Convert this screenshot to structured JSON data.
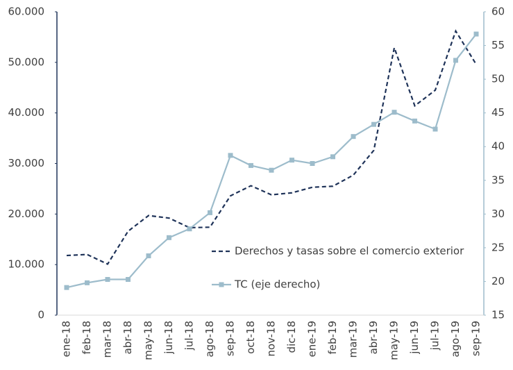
{
  "chart_data": {
    "type": "line",
    "categories": [
      "ene-18",
      "feb-18",
      "mar-18",
      "abr-18",
      "may-18",
      "jun-18",
      "jul-18",
      "ago-18",
      "sep-18",
      "oct-18",
      "nov-18",
      "dic-18",
      "ene-19",
      "feb-19",
      "mar-19",
      "abr-19",
      "may-19",
      "jun-19",
      "jul-19",
      "ago-19",
      "sep-19"
    ],
    "series": [
      {
        "name": "Derechos y tasas sobre el comercio exterior",
        "color": "#1f3359",
        "dash": true,
        "values": [
          11800,
          12000,
          10100,
          16600,
          19700,
          19200,
          17300,
          17400,
          23600,
          25600,
          23800,
          24200,
          25300,
          25500,
          27700,
          32600,
          52900,
          41400,
          44500,
          56200,
          49600
        ]
      },
      {
        "name": "TC (eje derecho)",
        "color": "#9dbccb",
        "axis": "y2",
        "marker": "square",
        "values": [
          19.1,
          19.8,
          20.3,
          20.3,
          23.8,
          26.5,
          27.8,
          30.2,
          38.7,
          37.2,
          36.5,
          38.0,
          37.5,
          38.5,
          41.5,
          43.3,
          45.1,
          43.8,
          42.6,
          52.8,
          56.7
        ]
      }
    ],
    "ylim": [
      0,
      60000
    ],
    "yticks": [
      0,
      {
        "value": 10000,
        "label": "10.000"
      },
      {
        "value": 20000,
        "label": "20.000"
      },
      {
        "value": 30000,
        "label": "30.000"
      },
      {
        "value": 40000,
        "label": "40.000"
      },
      {
        "value": 50000,
        "label": "50.000"
      },
      {
        "value": 60000,
        "label": "60.000"
      }
    ],
    "y2lim": [
      15,
      60
    ],
    "y2ticks": [
      15,
      20,
      25,
      30,
      35,
      40,
      45,
      50,
      55,
      60
    ],
    "grid": false
  }
}
